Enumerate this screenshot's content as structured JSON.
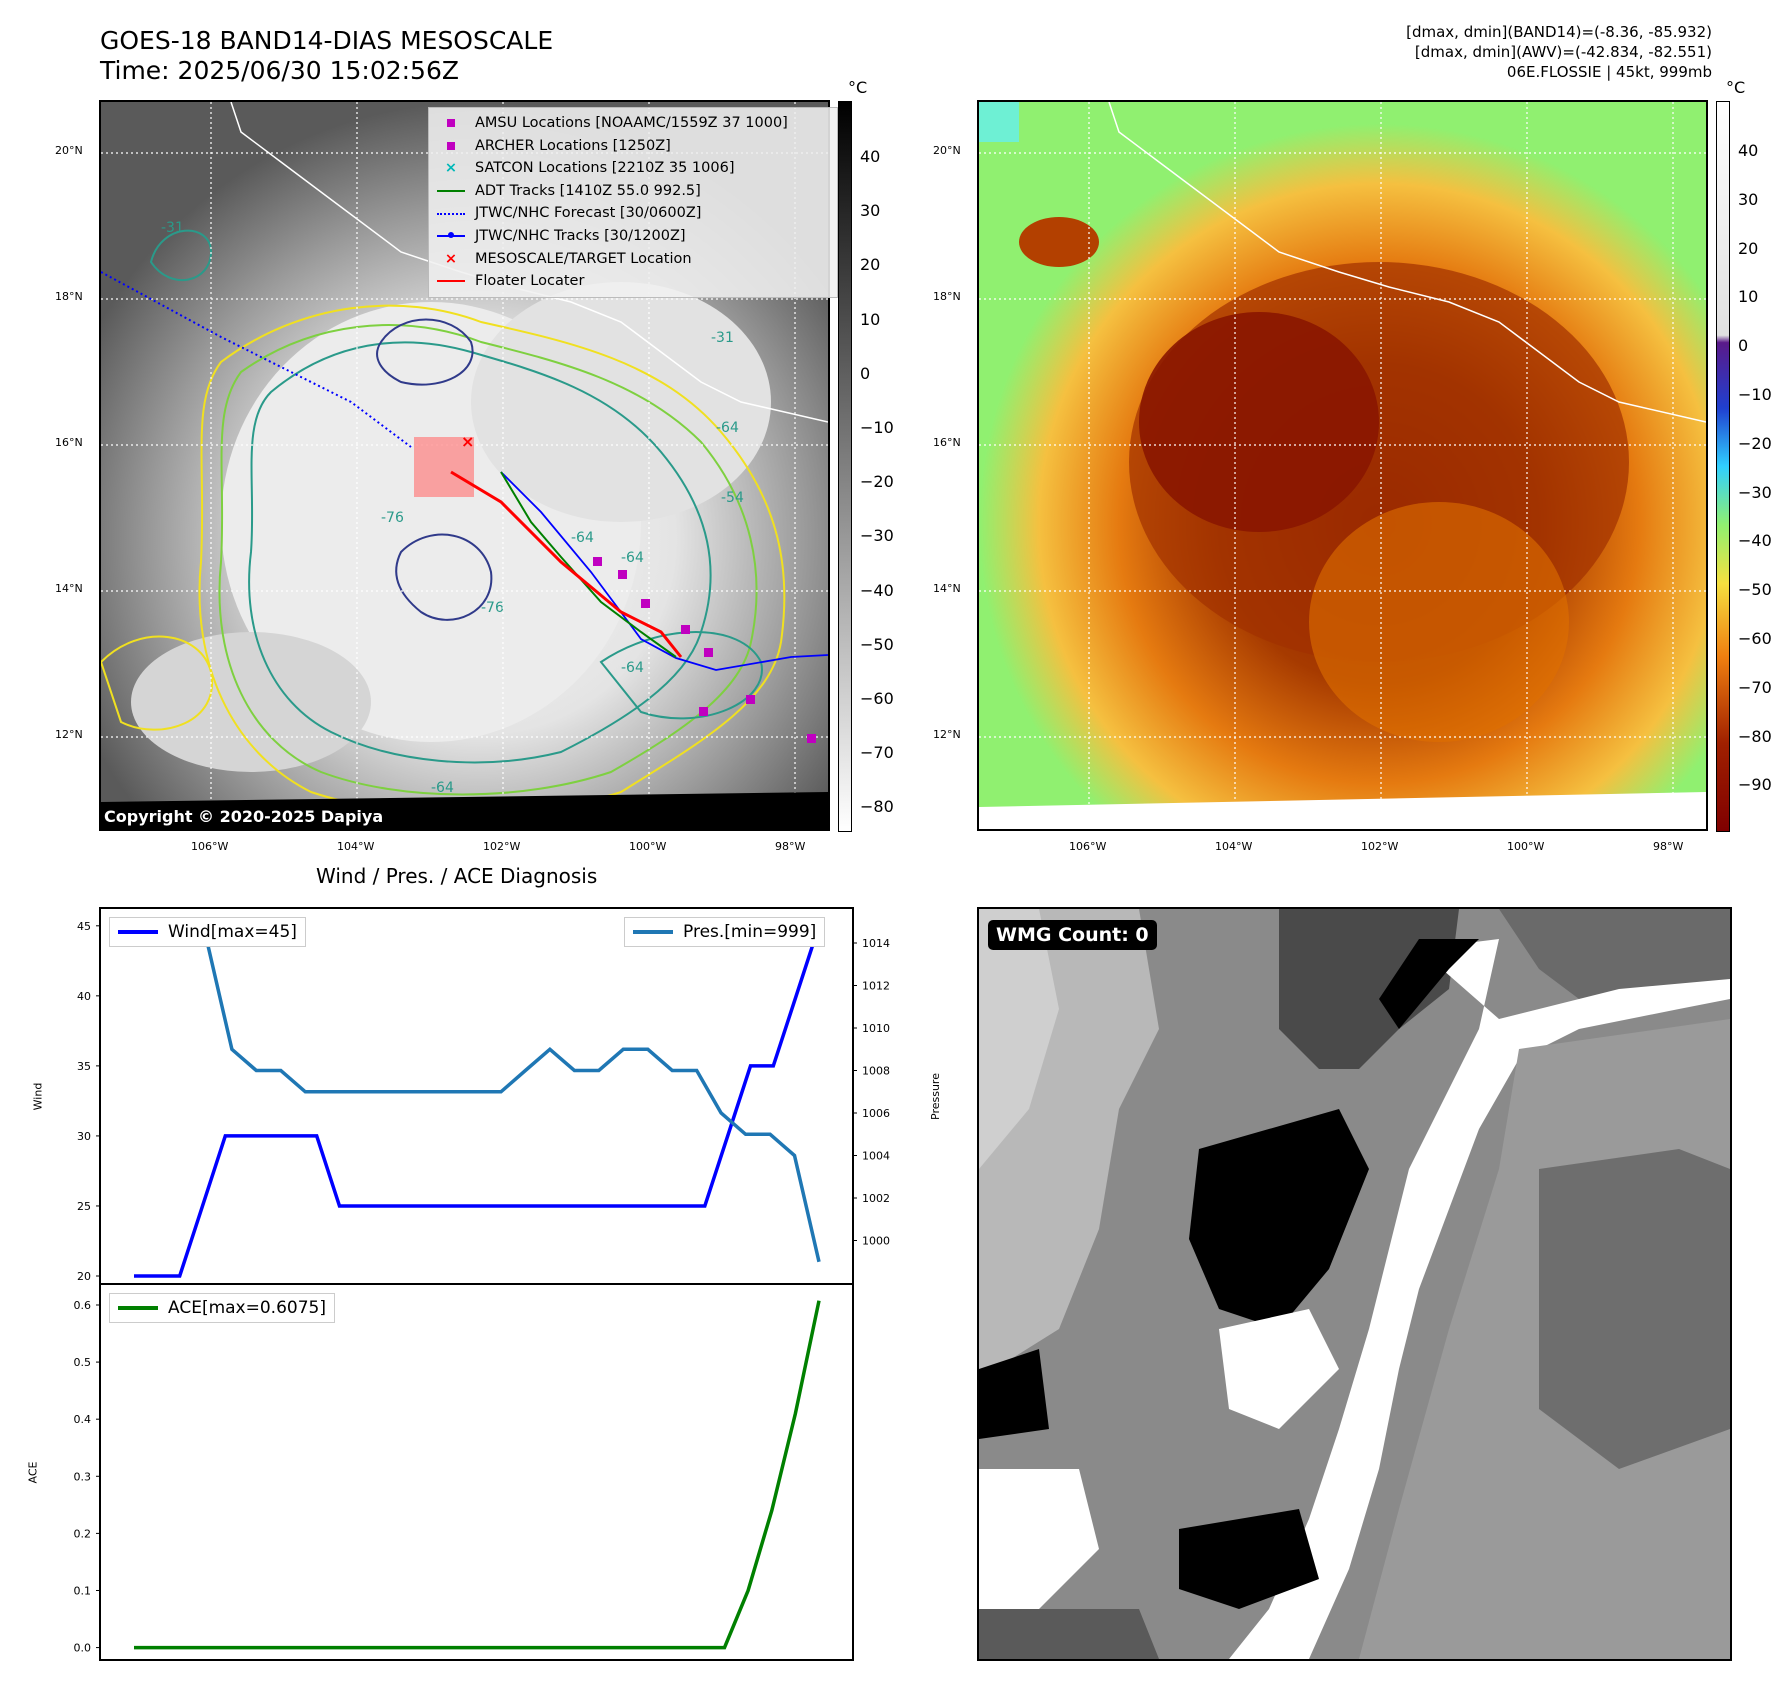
{
  "header": {
    "title_line1": "GOES-18 BAND14-DIAS MESOSCALE",
    "title_line2": "Time: 2025/06/30 15:02:56Z",
    "info_line1": "[dmax, dmin](BAND14)=(-8.36, -85.932)",
    "info_line2": "[dmax, dmin](AWV)=(-42.834, -82.551)",
    "info_line3": "06E.FLOSSIE | 45kt, 999mb"
  },
  "map_axes": {
    "lat_labels": [
      "20°N",
      "18°N",
      "16°N",
      "14°N",
      "12°N"
    ],
    "lon_labels": [
      "106°W",
      "104°W",
      "102°W",
      "100°W",
      "98°W"
    ]
  },
  "left_map": {
    "legend": [
      {
        "label": "AMSU Locations [NOAAMC/1559Z 37 1000]",
        "symbol": "square",
        "color": "#c000c0"
      },
      {
        "label": "ARCHER Locations [1250Z]",
        "symbol": "square",
        "color": "#c000c0"
      },
      {
        "label": "SATCON Locations [2210Z 35 1006]",
        "symbol": "x",
        "color": "#00b8b8"
      },
      {
        "label": "ADT Tracks [1410Z 55.0 992.5]",
        "symbol": "line",
        "color": "#008000"
      },
      {
        "label": "JTWC/NHC Forecast [30/0600Z]",
        "symbol": "dotted",
        "color": "#0000ff"
      },
      {
        "label": "JTWC/NHC Tracks [30/1200Z]",
        "symbol": "line-dot",
        "color": "#0000ff"
      },
      {
        "label": "MESOSCALE/TARGET Location",
        "symbol": "x",
        "color": "#ff0000"
      },
      {
        "label": "Floater Locater",
        "symbol": "line",
        "color": "#ff0000"
      }
    ],
    "contour_labels": [
      "-31",
      "-31",
      "-64",
      "-54",
      "-64",
      "-76",
      "-64",
      "-64",
      "-64",
      "-76"
    ],
    "copyright": "Copyright © 2020-2025 Dapiya",
    "colorbar": {
      "unit": "°C",
      "ticks": [
        "40",
        "30",
        "20",
        "10",
        "0",
        "−10",
        "−20",
        "−30",
        "−40",
        "−50",
        "−60",
        "−70",
        "−80"
      ]
    }
  },
  "right_map": {
    "colorbar": {
      "unit": "°C",
      "ticks": [
        "40",
        "30",
        "20",
        "10",
        "0",
        "−10",
        "−20",
        "−30",
        "−40",
        "−50",
        "−60",
        "−70",
        "−80",
        "−90"
      ]
    }
  },
  "diagnosis_title": "Wind / Pres. / ACE Diagnosis",
  "wmg": {
    "label": "WMG Count: 0"
  },
  "chart_data": [
    {
      "type": "line",
      "title": "Wind / Pres. / ACE Diagnosis",
      "ylabel": "Wind",
      "y2label": "Pressure",
      "ylim": [
        19.5,
        46.2
      ],
      "y2lim": [
        998.0,
        1015.6
      ],
      "yticks": [
        20,
        25,
        30,
        35,
        40,
        45
      ],
      "y2ticks": [
        1000,
        1002,
        1004,
        1006,
        1008,
        1010,
        1012,
        1014
      ],
      "series": [
        {
          "name": "Wind[max=45]",
          "axis": "left",
          "color": "#0000ff",
          "values": [
            20,
            20,
            20,
            25,
            30,
            30,
            30,
            30,
            30,
            25,
            25,
            25,
            25,
            25,
            25,
            25,
            25,
            25,
            25,
            25,
            25,
            25,
            25,
            25,
            25,
            25,
            30,
            35,
            35,
            40,
            45
          ]
        },
        {
          "name": "Pres.[min=999]",
          "axis": "right",
          "color": "#1f77b4",
          "values": [
            1014,
            1014,
            1014,
            1014,
            1009,
            1008,
            1008,
            1007,
            1007,
            1007,
            1007,
            1007,
            1007,
            1007,
            1007,
            1007,
            1008,
            1009,
            1008,
            1008,
            1009,
            1009,
            1008,
            1008,
            1006,
            1005,
            1005,
            1004,
            999
          ]
        }
      ]
    },
    {
      "type": "line",
      "ylabel": "ACE",
      "ylim": [
        -0.02,
        0.635
      ],
      "yticks": [
        "0.0",
        "0.1",
        "0.2",
        "0.3",
        "0.4",
        "0.5",
        "0.6"
      ],
      "series": [
        {
          "name": "ACE[max=0.6075]",
          "color": "#008000",
          "values": [
            0,
            0,
            0,
            0,
            0,
            0,
            0,
            0,
            0,
            0,
            0,
            0,
            0,
            0,
            0,
            0,
            0,
            0,
            0,
            0,
            0,
            0,
            0,
            0,
            0,
            0,
            0.1,
            0.24,
            0.41,
            0.6075
          ]
        }
      ]
    }
  ]
}
